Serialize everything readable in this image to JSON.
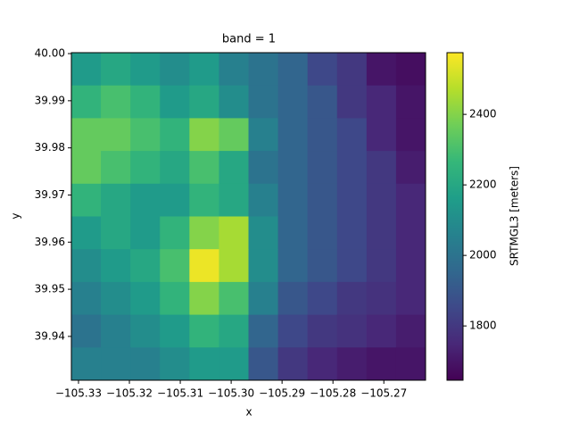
{
  "chart_data": {
    "type": "heatmap",
    "title": "band = 1",
    "x_label": "x",
    "y_label": "y",
    "colorbar_label": "SRTMGL3 [meters]",
    "colormap": "viridis",
    "x": [
      -105.3285,
      -105.3227,
      -105.3169,
      -105.3111,
      -105.3053,
      -105.2995,
      -105.2937,
      -105.2879,
      -105.2821,
      -105.2763,
      -105.2705,
      -105.2647
    ],
    "y": [
      39.9967,
      39.9898,
      39.9828,
      39.9759,
      39.9689,
      39.962,
      39.955,
      39.9481,
      39.9411,
      39.9342
    ],
    "z": [
      [
        2150,
        2200,
        2150,
        2100,
        2150,
        2050,
        2000,
        1950,
        1850,
        1800,
        1700,
        1680
      ],
      [
        2250,
        2300,
        2250,
        2150,
        2200,
        2100,
        2000,
        1950,
        1900,
        1800,
        1750,
        1700
      ],
      [
        2350,
        2350,
        2300,
        2250,
        2400,
        2350,
        2050,
        1950,
        1900,
        1850,
        1750,
        1700
      ],
      [
        2350,
        2300,
        2250,
        2200,
        2300,
        2200,
        2000,
        1950,
        1900,
        1850,
        1800,
        1720
      ],
      [
        2250,
        2200,
        2150,
        2150,
        2250,
        2200,
        2050,
        1950,
        1900,
        1850,
        1800,
        1750
      ],
      [
        2150,
        2200,
        2150,
        2250,
        2400,
        2450,
        2100,
        1950,
        1900,
        1850,
        1800,
        1750
      ],
      [
        2100,
        2150,
        2200,
        2300,
        2550,
        2450,
        2100,
        1950,
        1900,
        1850,
        1800,
        1750
      ],
      [
        2050,
        2100,
        2150,
        2250,
        2400,
        2300,
        2050,
        1900,
        1850,
        1800,
        1780,
        1750
      ],
      [
        2000,
        2050,
        2100,
        2150,
        2250,
        2200,
        1950,
        1850,
        1800,
        1780,
        1750,
        1720
      ],
      [
        2050,
        2050,
        2050,
        2100,
        2150,
        2150,
        1900,
        1800,
        1750,
        1720,
        1700,
        1700
      ]
    ],
    "xlim": [
      -105.3314,
      -105.2618
    ],
    "ylim": [
      39.9307,
      40.0002
    ],
    "xticks": [
      {
        "value": -105.33,
        "label": "−105.33"
      },
      {
        "value": -105.32,
        "label": "−105.32"
      },
      {
        "value": -105.31,
        "label": "−105.31"
      },
      {
        "value": -105.3,
        "label": "−105.30"
      },
      {
        "value": -105.29,
        "label": "−105.29"
      },
      {
        "value": -105.28,
        "label": "−105.28"
      },
      {
        "value": -105.27,
        "label": "−105.27"
      }
    ],
    "yticks": [
      39.94,
      39.95,
      39.96,
      39.97,
      39.98,
      39.99,
      {
        "value": 40,
        "label": "40.00"
      }
    ],
    "clim": [
      1646,
      2575
    ],
    "cticks": [
      1800,
      2000,
      2200,
      2400
    ]
  }
}
